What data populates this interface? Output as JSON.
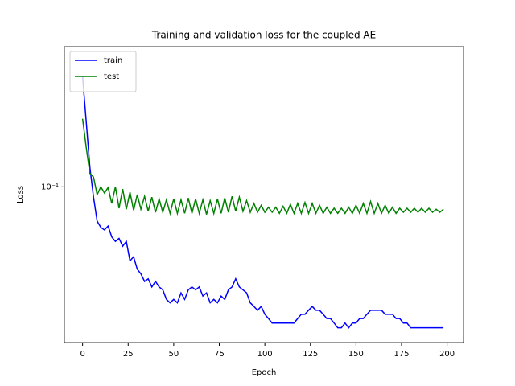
{
  "chart_data": {
    "type": "line",
    "title": "Training and validation loss for the coupled AE",
    "x_label": "Epoch",
    "y_label": "Loss",
    "y_scale": "log",
    "legend": "upper left",
    "x": [
      0,
      2,
      4,
      6,
      8,
      10,
      12,
      14,
      16,
      18,
      20,
      22,
      24,
      26,
      28,
      30,
      32,
      34,
      36,
      38,
      40,
      42,
      44,
      46,
      48,
      50,
      52,
      54,
      56,
      58,
      60,
      62,
      64,
      66,
      68,
      70,
      72,
      74,
      76,
      78,
      80,
      82,
      84,
      86,
      88,
      90,
      92,
      94,
      96,
      98,
      100,
      102,
      104,
      106,
      108,
      110,
      112,
      114,
      116,
      118,
      120,
      122,
      124,
      126,
      128,
      130,
      132,
      134,
      136,
      138,
      140,
      142,
      144,
      146,
      148,
      150,
      152,
      154,
      156,
      158,
      160,
      162,
      164,
      166,
      168,
      170,
      172,
      174,
      176,
      178,
      180,
      182,
      184,
      186,
      188,
      190,
      192,
      194,
      196,
      198
    ],
    "series": [
      {
        "name": "train",
        "color": "#0000ff",
        "values": [
          0.44,
          0.24,
          0.13,
          0.087,
          0.063,
          0.058,
          0.056,
          0.059,
          0.051,
          0.048,
          0.05,
          0.045,
          0.048,
          0.037,
          0.039,
          0.033,
          0.031,
          0.028,
          0.029,
          0.026,
          0.028,
          0.026,
          0.025,
          0.022,
          0.021,
          0.022,
          0.021,
          0.024,
          0.022,
          0.025,
          0.026,
          0.025,
          0.026,
          0.023,
          0.024,
          0.021,
          0.022,
          0.021,
          0.023,
          0.022,
          0.025,
          0.026,
          0.029,
          0.026,
          0.025,
          0.024,
          0.021,
          0.02,
          0.019,
          0.02,
          0.018,
          0.017,
          0.016,
          0.016,
          0.016,
          0.016,
          0.016,
          0.016,
          0.016,
          0.017,
          0.018,
          0.018,
          0.019,
          0.02,
          0.019,
          0.019,
          0.018,
          0.017,
          0.017,
          0.016,
          0.015,
          0.015,
          0.016,
          0.015,
          0.016,
          0.016,
          0.017,
          0.017,
          0.018,
          0.019,
          0.019,
          0.019,
          0.019,
          0.018,
          0.018,
          0.018,
          0.017,
          0.017,
          0.016,
          0.016,
          0.015,
          0.015,
          0.015,
          0.015,
          0.015,
          0.015,
          0.015,
          0.015,
          0.015,
          0.015
        ]
      },
      {
        "name": "test",
        "color": "#008000",
        "values": [
          0.25,
          0.17,
          0.12,
          0.114,
          0.09,
          0.1,
          0.092,
          0.099,
          0.08,
          0.1,
          0.075,
          0.097,
          0.074,
          0.093,
          0.073,
          0.09,
          0.074,
          0.088,
          0.072,
          0.087,
          0.071,
          0.085,
          0.071,
          0.084,
          0.07,
          0.085,
          0.07,
          0.084,
          0.07,
          0.086,
          0.07,
          0.085,
          0.07,
          0.084,
          0.069,
          0.083,
          0.07,
          0.085,
          0.07,
          0.086,
          0.071,
          0.088,
          0.072,
          0.087,
          0.072,
          0.083,
          0.071,
          0.08,
          0.071,
          0.078,
          0.071,
          0.076,
          0.071,
          0.076,
          0.07,
          0.077,
          0.07,
          0.079,
          0.07,
          0.08,
          0.07,
          0.081,
          0.07,
          0.08,
          0.07,
          0.078,
          0.07,
          0.076,
          0.07,
          0.075,
          0.07,
          0.075,
          0.07,
          0.076,
          0.07,
          0.078,
          0.07,
          0.08,
          0.07,
          0.082,
          0.07,
          0.08,
          0.07,
          0.078,
          0.07,
          0.076,
          0.07,
          0.075,
          0.071,
          0.075,
          0.071,
          0.075,
          0.071,
          0.075,
          0.071,
          0.075,
          0.071,
          0.074,
          0.071,
          0.074
        ]
      }
    ],
    "xlim": [
      -10,
      209
    ],
    "xticks": [
      0,
      25,
      50,
      75,
      100,
      125,
      150,
      175,
      200
    ],
    "ylim": [
      0.0123,
      0.66
    ],
    "yticks": [
      {
        "value": 0.1,
        "label": "10⁻¹"
      }
    ]
  }
}
